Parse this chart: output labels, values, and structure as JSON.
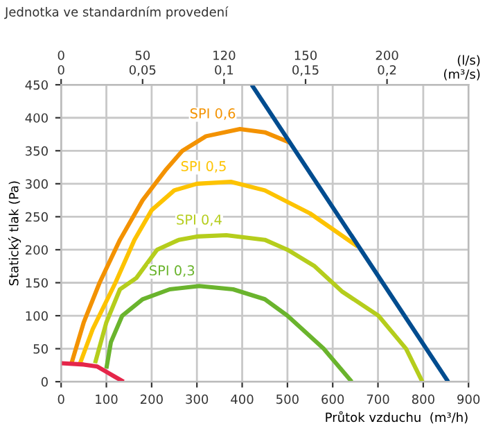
{
  "chart_data": {
    "type": "line",
    "title": "Jednotka ve standardním provedení",
    "xlabel": "Průtok vzduchu  (m³/h)",
    "ylabel": "Statický tlak (Pa)",
    "x2label": "(l/s)\n(m³/s)",
    "annotations": [
      "0",
      "50",
      "120",
      "150",
      "200"
    ],
    "xlim": [
      0,
      900
    ],
    "xticks": [
      0,
      100,
      200,
      300,
      400,
      500,
      600,
      700,
      800,
      900
    ],
    "ylim": [
      0,
      450
    ],
    "yticks": [
      0,
      50,
      100,
      150,
      200,
      250,
      300,
      350,
      400,
      450
    ],
    "x2lim": [
      0,
      0.25
    ],
    "x2ticks": [
      0,
      {
        "value": 0.05,
        "label": "0,05"
      },
      {
        "value": 0.1,
        "label": "0,1"
      },
      {
        "value": 0.15,
        "label": "0,15"
      },
      {
        "value": 0.2,
        "label": "0,2"
      }
    ],
    "grid": true,
    "marker": "none",
    "line_style": "solid",
    "series": [
      {
        "name": "SPI 0,6",
        "color": "#f39200",
        "x": [
          23,
          50,
          85,
          130,
          180,
          230,
          268,
          320,
          395,
          450,
          507
        ],
        "values": [
          28,
          90,
          150,
          215,
          275,
          320,
          350,
          372,
          383,
          378,
          362
        ]
      },
      {
        "name": "SPI 0,5",
        "color": "#fdc300",
        "x": [
          42,
          70,
          120,
          162,
          200,
          250,
          300,
          375,
          450,
          550,
          655
        ],
        "values": [
          28,
          80,
          150,
          215,
          260,
          290,
          300,
          303,
          290,
          255,
          205
        ]
      },
      {
        "name": "SPI 0,4",
        "color": "#b5cd1c",
        "x": [
          75,
          100,
          130,
          166,
          212,
          260,
          300,
          365,
          450,
          500,
          560,
          620,
          701,
          762,
          798
        ],
        "values": [
          28,
          90,
          140,
          157,
          200,
          215,
          220,
          222,
          215,
          200,
          175,
          137,
          100,
          50,
          0
        ]
      },
      {
        "name": "SPI 0,3",
        "color": "#6ab42d",
        "x": [
          100,
          110,
          135,
          180,
          240,
          305,
          380,
          450,
          500,
          580,
          642
        ],
        "values": [
          20,
          60,
          100,
          125,
          140,
          145,
          140,
          125,
          100,
          50,
          0
        ]
      },
      {
        "color": "#e5264a",
        "x": [
          0,
          50,
          80,
          100,
          120,
          138
        ],
        "values": [
          28,
          26,
          23,
          15,
          7,
          0
        ]
      },
      {
        "color": "#004c8f",
        "x": [
          421,
          855
        ],
        "values": [
          450,
          0
        ]
      }
    ]
  }
}
